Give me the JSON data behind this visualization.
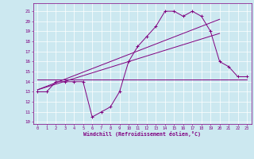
{
  "xlabel": "Windchill (Refroidissement éolien,°C)",
  "bg_color": "#cce8f0",
  "line_color": "#800080",
  "xlim": [
    -0.5,
    23.5
  ],
  "ylim": [
    9.8,
    21.8
  ],
  "xticks": [
    0,
    1,
    2,
    3,
    4,
    5,
    6,
    7,
    8,
    9,
    10,
    11,
    12,
    13,
    14,
    15,
    16,
    17,
    18,
    19,
    20,
    21,
    22,
    23
  ],
  "yticks": [
    10,
    11,
    12,
    13,
    14,
    15,
    16,
    17,
    18,
    19,
    20,
    21
  ],
  "series1_x": [
    0,
    1,
    2,
    3,
    4,
    5,
    6,
    7,
    8,
    9,
    10,
    11,
    12,
    13,
    14,
    15,
    16,
    17,
    18,
    19,
    20,
    21,
    22,
    23
  ],
  "series1_y": [
    13.0,
    13.0,
    14.0,
    14.0,
    14.0,
    14.0,
    10.5,
    11.0,
    11.5,
    13.0,
    16.0,
    17.5,
    18.5,
    19.5,
    21.0,
    21.0,
    20.5,
    21.0,
    20.5,
    19.0,
    16.0,
    15.5,
    14.5,
    14.5
  ],
  "series2_x": [
    0,
    20
  ],
  "series2_y": [
    13.2,
    20.2
  ],
  "series3_x": [
    0,
    20
  ],
  "series3_y": [
    13.2,
    18.8
  ],
  "series4_x": [
    0,
    23
  ],
  "series4_y": [
    14.2,
    14.2
  ]
}
